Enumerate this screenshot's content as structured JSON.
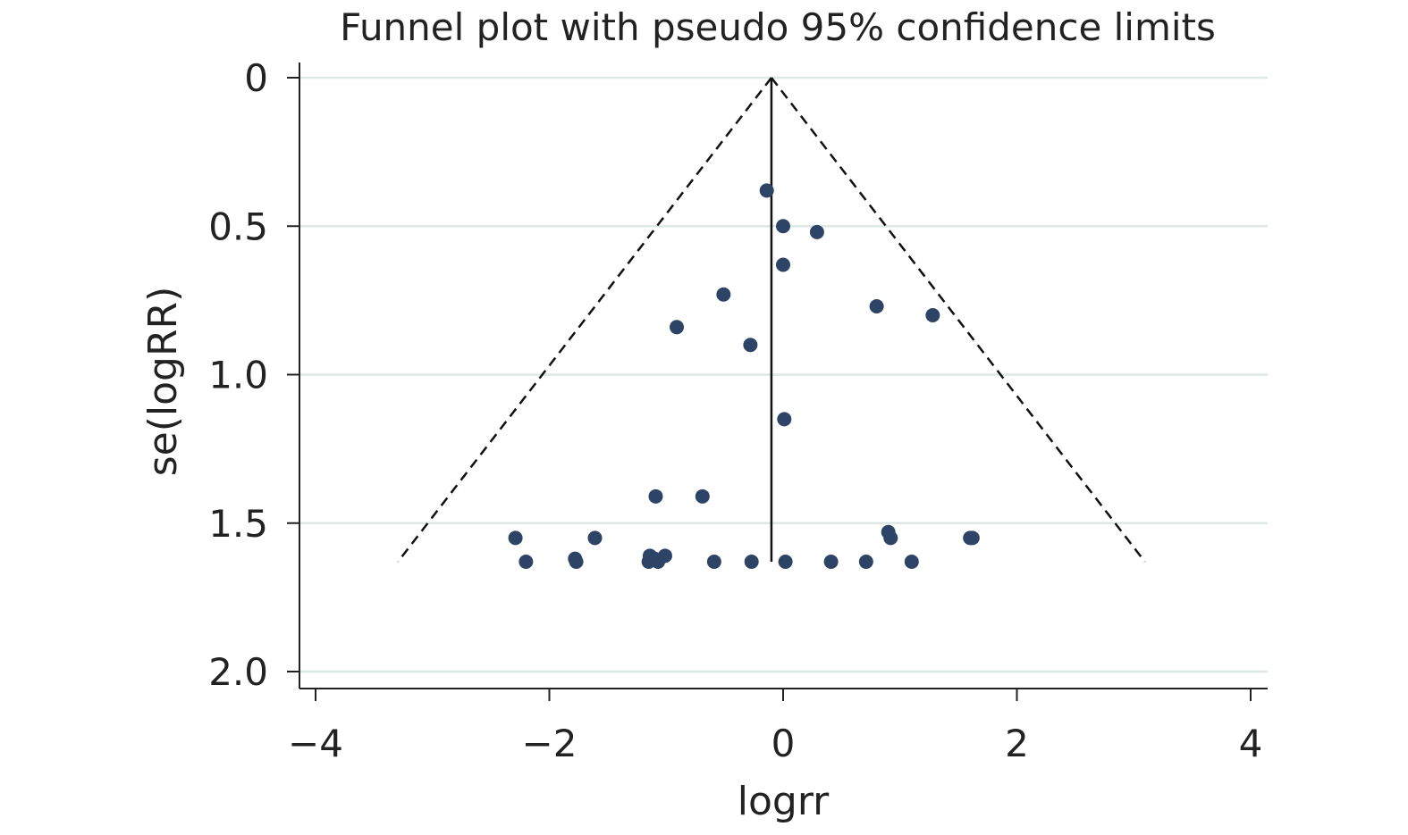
{
  "chart_data": {
    "type": "scatter",
    "title": "Funnel plot with pseudo 95% confidence limits",
    "xlabel": "logrr",
    "ylabel": "se(logRR)",
    "xlim": [
      -4,
      4
    ],
    "ylim": [
      0,
      2
    ],
    "y_reversed": true,
    "x_ticks": [
      "−4",
      "−2",
      "0",
      "2",
      "4"
    ],
    "x_tick_values": [
      -4,
      -2,
      0,
      2,
      4
    ],
    "y_ticks": [
      "0",
      "0.5",
      "1.0",
      "1.5",
      "2.0"
    ],
    "y_tick_values": [
      0,
      0.5,
      1.0,
      1.5,
      2.0
    ],
    "grid": "horizontal",
    "pooled_estimate": -0.1,
    "funnel_se_max": 1.63,
    "marker_color": "#2e4466",
    "grid_color": "#dde9e6",
    "points": [
      {
        "x": -0.14,
        "y": 0.38
      },
      {
        "x": 0.0,
        "y": 0.5
      },
      {
        "x": 0.29,
        "y": 0.52
      },
      {
        "x": 0.0,
        "y": 0.63
      },
      {
        "x": -0.51,
        "y": 0.73
      },
      {
        "x": 0.8,
        "y": 0.77
      },
      {
        "x": 1.28,
        "y": 0.8
      },
      {
        "x": -0.91,
        "y": 0.84
      },
      {
        "x": -0.28,
        "y": 0.9
      },
      {
        "x": 0.01,
        "y": 1.15
      },
      {
        "x": -1.09,
        "y": 1.41
      },
      {
        "x": -0.69,
        "y": 1.41
      },
      {
        "x": -2.29,
        "y": 1.55
      },
      {
        "x": -1.61,
        "y": 1.55
      },
      {
        "x": 0.9,
        "y": 1.53
      },
      {
        "x": 0.92,
        "y": 1.55
      },
      {
        "x": 1.6,
        "y": 1.55
      },
      {
        "x": 1.62,
        "y": 1.55
      },
      {
        "x": -2.2,
        "y": 1.63
      },
      {
        "x": -1.78,
        "y": 1.62
      },
      {
        "x": -1.77,
        "y": 1.63
      },
      {
        "x": -1.14,
        "y": 1.61
      },
      {
        "x": -1.15,
        "y": 1.63
      },
      {
        "x": -1.1,
        "y": 1.62
      },
      {
        "x": -1.07,
        "y": 1.63
      },
      {
        "x": -1.01,
        "y": 1.61
      },
      {
        "x": -0.59,
        "y": 1.63
      },
      {
        "x": -0.27,
        "y": 1.63
      },
      {
        "x": 0.02,
        "y": 1.63
      },
      {
        "x": 0.41,
        "y": 1.63
      },
      {
        "x": 0.71,
        "y": 1.63
      },
      {
        "x": 1.1,
        "y": 1.63
      }
    ]
  }
}
